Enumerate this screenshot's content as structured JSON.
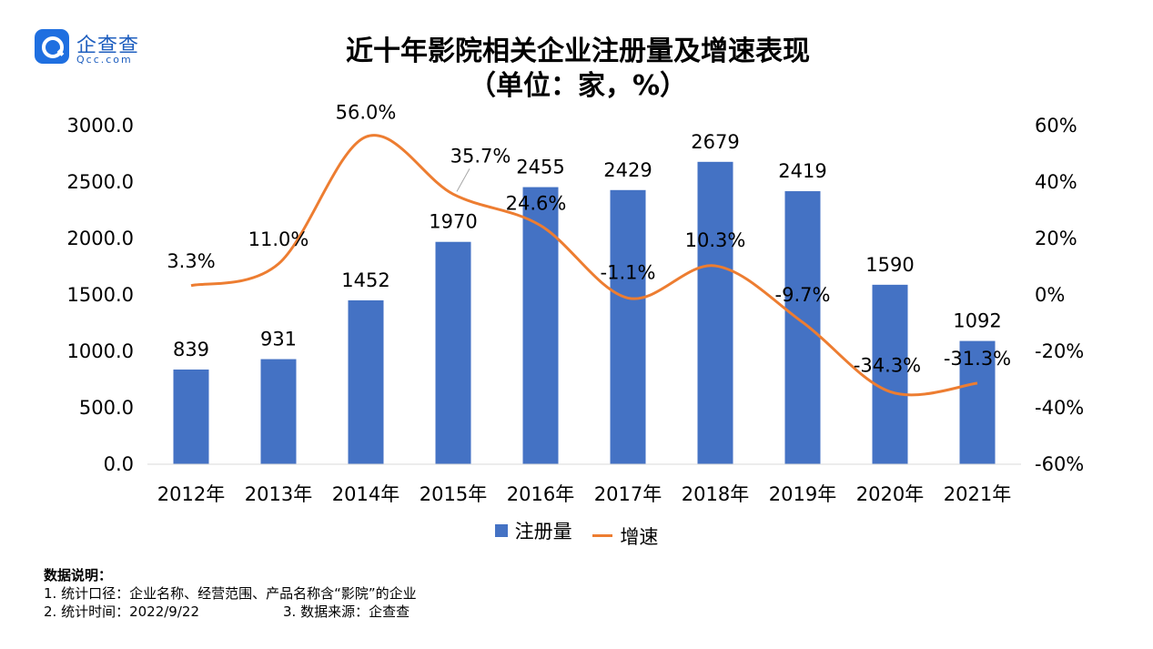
{
  "brand": {
    "name": "企查查",
    "domain": "Qcc.com",
    "logo_icon": "magnifier-q-icon",
    "color": "#1f6fe0"
  },
  "title_line1": "近十年影院相关企业注册量及增速表现",
  "title_line2": "（单位：家，%）",
  "chart_data": {
    "type": "bar+line",
    "categories": [
      "2012年",
      "2013年",
      "2014年",
      "2015年",
      "2016年",
      "2017年",
      "2018年",
      "2019年",
      "2020年",
      "2021年"
    ],
    "series": [
      {
        "name": "注册量",
        "type": "bar",
        "axis": "left",
        "color": "#4472c4",
        "values": [
          839,
          931,
          1452,
          1970,
          2455,
          2429,
          2679,
          2419,
          1590,
          1092
        ],
        "labels": [
          "839",
          "931",
          "1452",
          "1970",
          "2455",
          "2429",
          "2679",
          "2419",
          "1590",
          "1092"
        ]
      },
      {
        "name": "增速",
        "type": "line",
        "axis": "right",
        "color": "#ed7d31",
        "smooth": true,
        "values": [
          3.3,
          11.0,
          56.0,
          35.7,
          24.6,
          -1.1,
          10.3,
          -9.7,
          -34.3,
          -31.3
        ],
        "labels": [
          "3.3%",
          "11.0%",
          "56.0%",
          "35.7%",
          "24.6%",
          "-1.1%",
          "10.3%",
          "-9.7%",
          "-34.3%",
          "-31.3%"
        ]
      }
    ],
    "y_left": {
      "min": 0,
      "max": 3000,
      "ticks": [
        "0.0",
        "500.0",
        "1000.0",
        "1500.0",
        "2000.0",
        "2500.0",
        "3000.0"
      ]
    },
    "y_right": {
      "min": -60,
      "max": 60,
      "ticks": [
        "-60%",
        "-40%",
        "-20%",
        "0%",
        "20%",
        "40%",
        "60%"
      ]
    },
    "grid": false,
    "legend": {
      "placement": "bottom",
      "items": [
        "注册量",
        "增速"
      ]
    }
  },
  "notes": {
    "heading": "数据说明：",
    "line1": "1. 统计口径：企业名称、经营范围、产品名称含“影院”的企业",
    "line2a": "2. 统计时间：2022/9/22",
    "line2b": "3. 数据来源：企查查"
  }
}
